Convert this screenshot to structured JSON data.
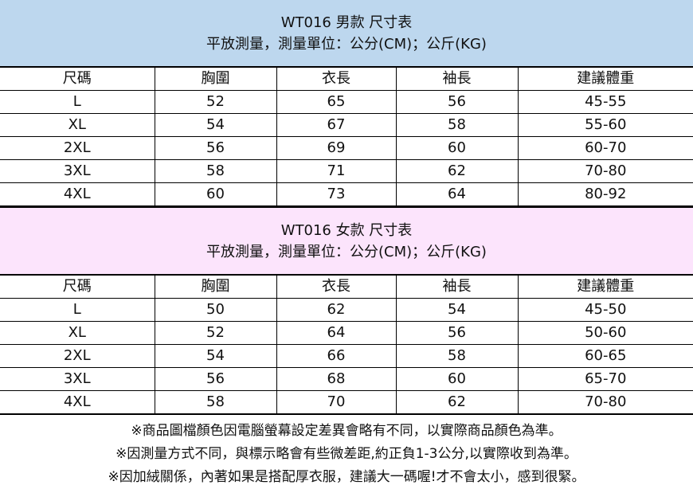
{
  "colors": {
    "men_header": "#bdd7ee",
    "women_header": "#fce4fc"
  },
  "columns": [
    "尺碼",
    "胸圍",
    "衣長",
    "袖長",
    "建議體重"
  ],
  "men": {
    "title": "WT016 男款 尺寸表",
    "subtitle": "平放測量，測量單位：公分(CM)；公斤(KG)",
    "rows": [
      [
        "L",
        "52",
        "65",
        "56",
        "45-55"
      ],
      [
        "XL",
        "54",
        "67",
        "58",
        "55-60"
      ],
      [
        "2XL",
        "56",
        "69",
        "60",
        "60-70"
      ],
      [
        "3XL",
        "58",
        "71",
        "62",
        "70-80"
      ],
      [
        "4XL",
        "60",
        "73",
        "64",
        "80-92"
      ]
    ]
  },
  "women": {
    "title": "WT016 女款 尺寸表",
    "subtitle": "平放測量，測量單位：公分(CM)；公斤(KG)",
    "rows": [
      [
        "L",
        "50",
        "62",
        "54",
        "45-50"
      ],
      [
        "XL",
        "52",
        "64",
        "56",
        "50-60"
      ],
      [
        "2XL",
        "54",
        "66",
        "58",
        "60-65"
      ],
      [
        "3XL",
        "56",
        "68",
        "60",
        "65-70"
      ],
      [
        "4XL",
        "58",
        "70",
        "62",
        "70-80"
      ]
    ]
  },
  "notes": [
    "※商品圖檔顏色因電腦螢幕設定差異會略有不同，以實際商品顏色為準。",
    "※因測量方式不同，與標示略會有些微差距,約正負1-3公分,以實際收到為準。",
    "※因加絨關係，內著如果是搭配厚衣服，建議大一碼喔!才不會太小，感到很緊。"
  ]
}
